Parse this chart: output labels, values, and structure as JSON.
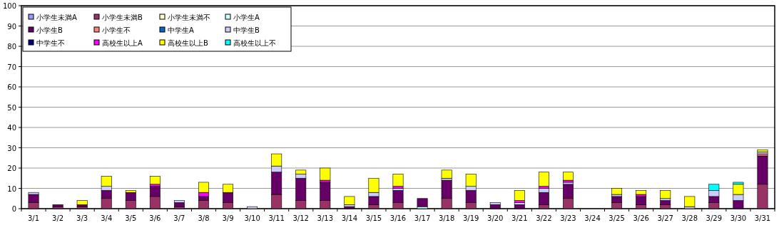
{
  "chart_data": {
    "type": "bar",
    "stacked": true,
    "legend": "top left",
    "grid": "y",
    "ylim": [
      0,
      100
    ],
    "yticks": [
      0,
      10,
      20,
      30,
      40,
      50,
      60,
      70,
      80,
      90,
      100
    ],
    "categories": [
      "3/1",
      "3/2",
      "3/3",
      "3/4",
      "3/5",
      "3/6",
      "3/7",
      "3/8",
      "3/9",
      "3/10",
      "3/11",
      "3/12",
      "3/13",
      "3/14",
      "3/15",
      "3/16",
      "3/17",
      "3/18",
      "3/19",
      "3/20",
      "3/21",
      "3/22",
      "3/23",
      "3/24",
      "3/25",
      "3/26",
      "3/27",
      "3/28",
      "3/29",
      "3/30",
      "3/31"
    ],
    "series": [
      {
        "name": "小学生未満A",
        "color": "#9999ff",
        "values": [
          null,
          null,
          null,
          null,
          null,
          null,
          null,
          null,
          null,
          null,
          null,
          null,
          null,
          null,
          null,
          null,
          null,
          null,
          null,
          null,
          null,
          null,
          null,
          null,
          null,
          null,
          null,
          null,
          null,
          null,
          null
        ]
      },
      {
        "name": "小学生未満B",
        "color": "#993366",
        "values": [
          3,
          1,
          1,
          5,
          4,
          6,
          1,
          4,
          3,
          null,
          7,
          4,
          4,
          null,
          2,
          3,
          null,
          5,
          3,
          null,
          null,
          2,
          5,
          null,
          3,
          2,
          2,
          null,
          3,
          null,
          12
        ]
      },
      {
        "name": "小学生未満不",
        "color": "#ffffcc",
        "values": [
          null,
          null,
          null,
          null,
          null,
          null,
          null,
          null,
          null,
          null,
          null,
          null,
          null,
          null,
          null,
          null,
          null,
          null,
          null,
          null,
          null,
          null,
          null,
          null,
          null,
          null,
          null,
          null,
          null,
          null,
          null
        ]
      },
      {
        "name": "小学生A",
        "color": "#ccffff",
        "values": [
          null,
          null,
          null,
          null,
          null,
          null,
          null,
          null,
          null,
          null,
          null,
          null,
          null,
          null,
          null,
          null,
          1,
          null,
          null,
          null,
          null,
          null,
          null,
          null,
          null,
          null,
          null,
          null,
          null,
          null,
          null
        ]
      },
      {
        "name": "小学生B",
        "color": "#660066",
        "values": [
          4,
          1,
          1,
          4,
          4,
          5,
          2,
          2,
          5,
          null,
          11,
          11,
          9,
          1,
          4,
          6,
          4,
          9,
          6,
          2,
          2,
          6,
          7,
          null,
          3,
          4,
          2,
          null,
          3,
          4,
          14
        ]
      },
      {
        "name": "小学生不",
        "color": "#ff8080",
        "values": [
          null,
          null,
          null,
          null,
          null,
          null,
          null,
          null,
          null,
          null,
          null,
          null,
          null,
          null,
          null,
          null,
          null,
          null,
          null,
          null,
          null,
          null,
          null,
          null,
          null,
          null,
          null,
          null,
          null,
          null,
          1
        ]
      },
      {
        "name": "中学生A",
        "color": "#0066cc",
        "values": [
          null,
          null,
          null,
          null,
          null,
          null,
          null,
          null,
          null,
          null,
          null,
          null,
          null,
          null,
          null,
          null,
          null,
          null,
          null,
          null,
          null,
          null,
          null,
          null,
          null,
          null,
          null,
          null,
          null,
          null,
          null
        ]
      },
      {
        "name": "中学生B",
        "color": "#ccccff",
        "values": [
          1,
          null,
          null,
          2,
          null,
          null,
          1,
          null,
          null,
          1,
          3,
          2,
          null,
          1,
          2,
          1,
          null,
          1,
          2,
          1,
          1,
          2,
          1,
          null,
          1,
          null,
          1,
          1,
          3,
          3,
          1
        ]
      },
      {
        "name": "中学生不",
        "color": "#000080",
        "values": [
          null,
          null,
          null,
          null,
          null,
          null,
          null,
          null,
          null,
          null,
          null,
          null,
          null,
          null,
          null,
          null,
          null,
          null,
          null,
          null,
          null,
          null,
          null,
          null,
          null,
          null,
          null,
          null,
          null,
          null,
          null
        ]
      },
      {
        "name": "高校生以上A",
        "color": "#ff00ff",
        "values": [
          null,
          null,
          null,
          null,
          null,
          1,
          null,
          2,
          null,
          null,
          null,
          null,
          1,
          null,
          null,
          1,
          null,
          null,
          null,
          null,
          1,
          1,
          1,
          null,
          null,
          1,
          null,
          null,
          null,
          null,
          null
        ]
      },
      {
        "name": "高校生以上B",
        "color": "#ffff00",
        "values": [
          null,
          null,
          2,
          5,
          1,
          4,
          null,
          5,
          4,
          null,
          6,
          2,
          6,
          4,
          7,
          6,
          null,
          4,
          6,
          null,
          5,
          7,
          4,
          null,
          3,
          2,
          4,
          5,
          null,
          5,
          1
        ]
      },
      {
        "name": "高校生以上不",
        "color": "#00ffff",
        "values": [
          null,
          null,
          null,
          null,
          null,
          null,
          null,
          null,
          null,
          null,
          null,
          null,
          null,
          null,
          null,
          null,
          null,
          null,
          null,
          null,
          null,
          null,
          null,
          null,
          null,
          null,
          null,
          null,
          3,
          1,
          null
        ]
      }
    ]
  }
}
